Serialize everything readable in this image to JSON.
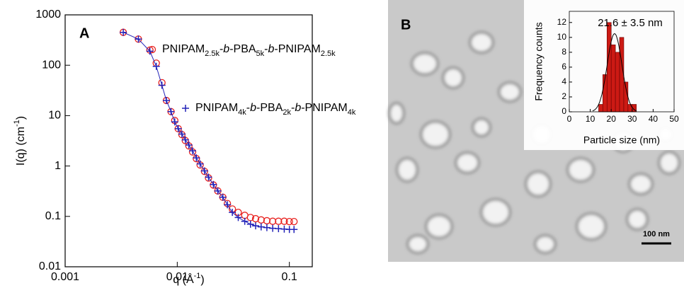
{
  "chart_data": [
    {
      "type": "scatter",
      "panel_label": "A",
      "x_label": "q (Å-1)",
      "y_label": "I(q) (cm-1)",
      "x_log": true,
      "y_log": true,
      "xlim": [
        0.001,
        0.16
      ],
      "ylim": [
        0.01,
        1000
      ],
      "xticks": [
        0.001,
        0.01,
        0.1
      ],
      "yticks": [
        0.01,
        0.1,
        1,
        10,
        100,
        1000
      ],
      "x": [
        0.0033,
        0.0045,
        0.0057,
        0.0065,
        0.0073,
        0.008,
        0.0088,
        0.0095,
        0.0102,
        0.011,
        0.0118,
        0.0127,
        0.0137,
        0.0148,
        0.016,
        0.0175,
        0.019,
        0.021,
        0.023,
        0.0255,
        0.028,
        0.031,
        0.035,
        0.04,
        0.045,
        0.05,
        0.056,
        0.063,
        0.071,
        0.08,
        0.09,
        0.1,
        0.11
      ],
      "series": [
        {
          "name": "PNIPAM2.5k-b-PBA5k-b-PNIPAM2.5k",
          "color": "#e8211f",
          "marker": "circle",
          "values": [
            450,
            330,
            200,
            110,
            45,
            20,
            12,
            8,
            5.5,
            4.2,
            3.2,
            2.5,
            1.9,
            1.4,
            1.05,
            0.78,
            0.58,
            0.42,
            0.32,
            0.24,
            0.18,
            0.14,
            0.12,
            0.105,
            0.095,
            0.09,
            0.085,
            0.082,
            0.08,
            0.08,
            0.08,
            0.079,
            0.079
          ]
        },
        {
          "name": "PNIPAM4k-b-PBA2k-b-PNIPAM4k",
          "color": "#2323b8",
          "marker": "plus",
          "line": true,
          "values": [
            450,
            330,
            190,
            95,
            40,
            20,
            12,
            7.5,
            5.5,
            4.3,
            3.3,
            2.6,
            2,
            1.45,
            1.1,
            0.8,
            0.6,
            0.43,
            0.32,
            0.24,
            0.17,
            0.12,
            0.095,
            0.08,
            0.07,
            0.065,
            0.062,
            0.06,
            0.058,
            0.057,
            0.056,
            0.055,
            0.055
          ]
        }
      ]
    },
    {
      "type": "histogram",
      "x_label": "Particle size (nm)",
      "y_label": "Frequency counts",
      "annotation": "21.6 ± 3.5 nm",
      "color": "#cc1a14",
      "xlim": [
        0,
        50
      ],
      "ylim": [
        0,
        13.5
      ],
      "xticks": [
        0,
        10,
        20,
        30,
        40,
        50
      ],
      "yticks": [
        0,
        2,
        4,
        6,
        8,
        10,
        12
      ],
      "bins": [
        14,
        16,
        18,
        20,
        22,
        24,
        26,
        28,
        30,
        32
      ],
      "counts": [
        1,
        5,
        12,
        9,
        8,
        10,
        4,
        1,
        1
      ],
      "fit": {
        "mean": 21.6,
        "sd": 3.5,
        "amplitude": 10.5
      }
    }
  ],
  "image": {
    "panel_label": "B",
    "scale_bar": "100 nm"
  }
}
